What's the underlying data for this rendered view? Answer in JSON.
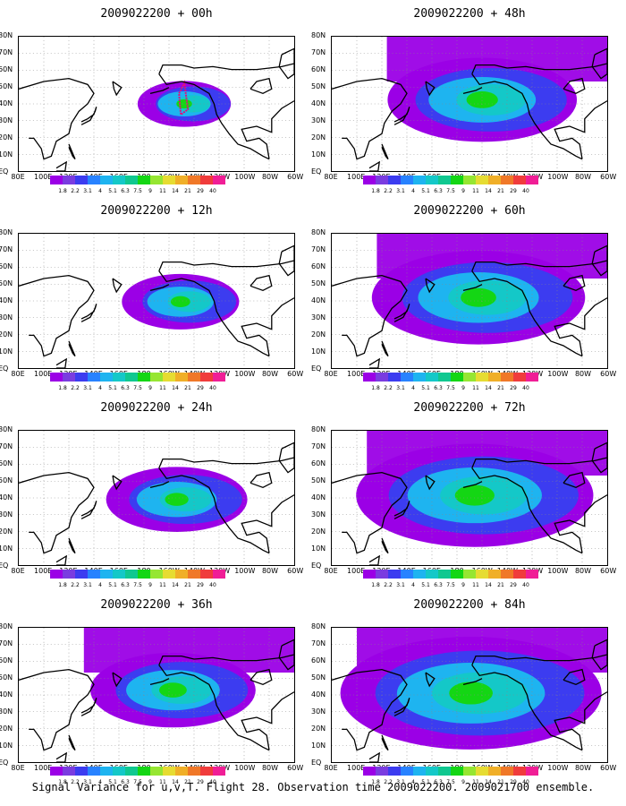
{
  "panels": [
    {
      "title": "2009022200 + 00h",
      "level": 0
    },
    {
      "title": "2009022200 + 48h",
      "level": 4
    },
    {
      "title": "2009022200 + 12h",
      "level": 1
    },
    {
      "title": "2009022200 + 60h",
      "level": 5
    },
    {
      "title": "2009022200 + 24h",
      "level": 2
    },
    {
      "title": "2009022200 + 72h",
      "level": 6
    },
    {
      "title": "2009022200 + 36h",
      "level": 3
    },
    {
      "title": "2009022200 + 84h",
      "level": 7
    }
  ],
  "lat_labels": [
    "80N",
    "70N",
    "60N",
    "50N",
    "40N",
    "30N",
    "20N",
    "10N",
    "EQ"
  ],
  "lon_labels": [
    "80E",
    "100E",
    "120E",
    "140E",
    "160E",
    "180",
    "160W",
    "140W",
    "120W",
    "100W",
    "80W",
    "60W"
  ],
  "colorbar": {
    "labels": [
      "1.8",
      "2.2",
      "3.1",
      "4",
      "5.1",
      "6.3",
      "7.5",
      "9",
      "11",
      "14",
      "21",
      "29",
      "40"
    ],
    "colors": [
      "#9b00e6",
      "#7a3ce0",
      "#3c3cf0",
      "#2882ff",
      "#1eb4f0",
      "#14c8c8",
      "#10c890",
      "#14d614",
      "#96e632",
      "#e6dc32",
      "#f0af28",
      "#f07828",
      "#f03c3c",
      "#f01e96"
    ]
  },
  "caption": "Signal Variance for u,v,T. Flight 28. Observation time 2009022200. 2009021700 ensemble."
}
